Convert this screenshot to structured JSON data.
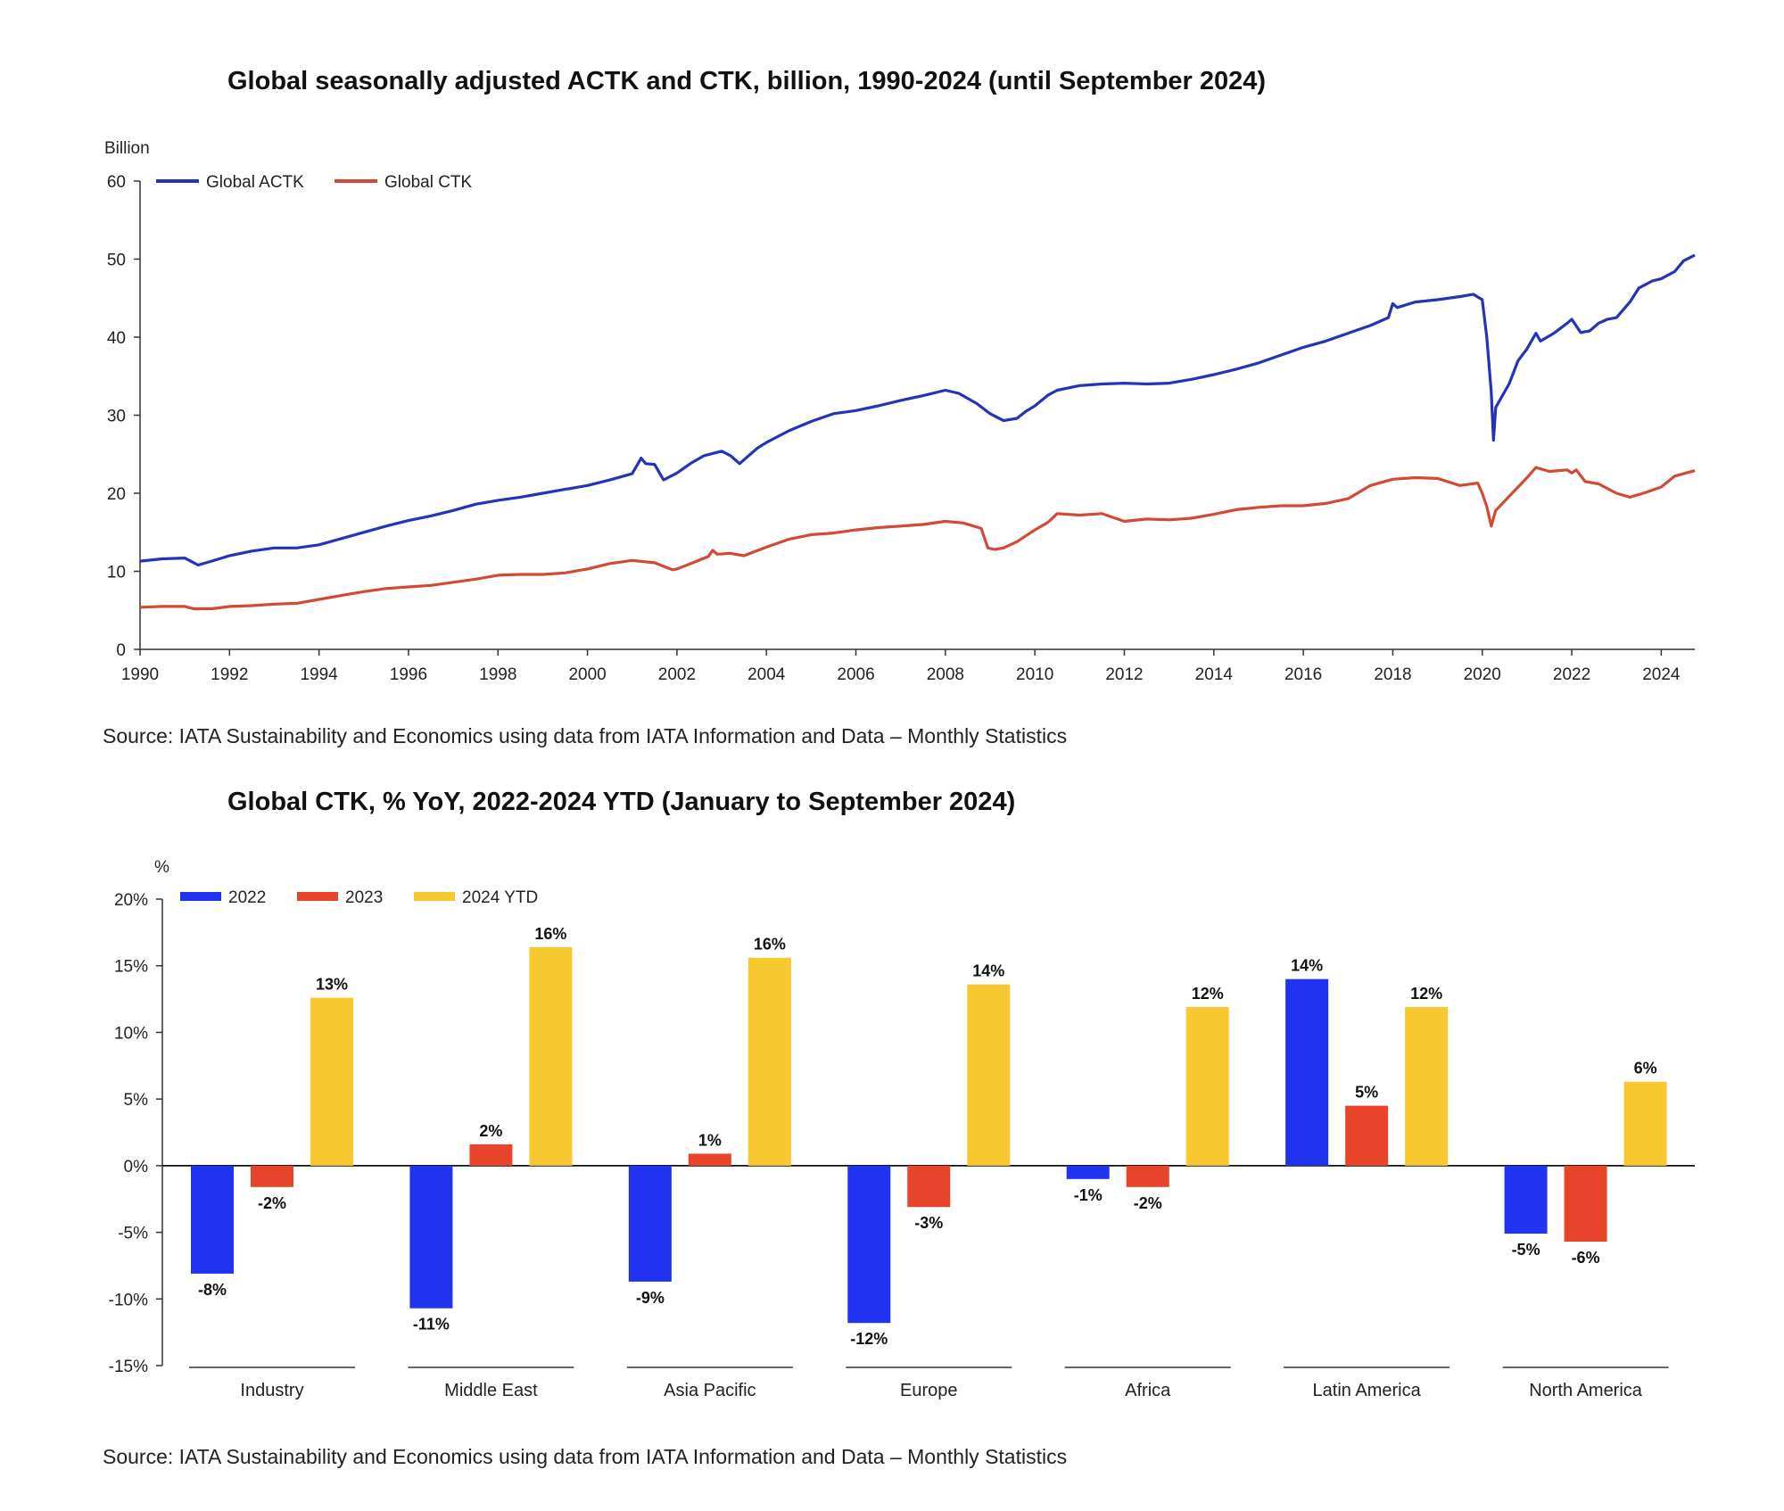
{
  "chart_data": [
    {
      "type": "line",
      "title": "Global seasonally adjusted ACTK and CTK, billion, 1990-2024 (until September 2024)",
      "ylabel": "Billion",
      "xlabel": "",
      "ylim": [
        0,
        60
      ],
      "xlim": [
        1990,
        2024.75
      ],
      "y_ticks": [
        0,
        10,
        20,
        30,
        40,
        50,
        60
      ],
      "x_ticks": [
        1990,
        1992,
        1994,
        1996,
        1998,
        2000,
        2002,
        2004,
        2006,
        2008,
        2010,
        2012,
        2014,
        2016,
        2018,
        2020,
        2022,
        2024
      ],
      "legend_position": "top-left",
      "grid": false,
      "series": [
        {
          "name": "Global ACTK",
          "color": "#2433b8",
          "x": [
            1990,
            1990.5,
            1991.0,
            1991.1,
            1991.3,
            1991.6,
            1992,
            1992.5,
            1993,
            1993.5,
            1994,
            1994.5,
            1995,
            1995.5,
            1996,
            1996.5,
            1997,
            1997.5,
            1998,
            1998.5,
            1999,
            1999.5,
            2000,
            2000.5,
            2001,
            2001.2,
            2001.3,
            2001.5,
            2001.7,
            2001.8,
            2002,
            2002.3,
            2002.6,
            2003.0,
            2003.2,
            2003.4,
            2003.8,
            2004,
            2004.5,
            2005,
            2005.5,
            2006,
            2006.5,
            2007,
            2007.5,
            2008,
            2008.3,
            2008.7,
            2009.0,
            2009.3,
            2009.6,
            2009.8,
            2010.0,
            2010.3,
            2010.5,
            2011,
            2011.5,
            2012,
            2012.5,
            2013,
            2013.5,
            2014,
            2014.5,
            2015,
            2015.5,
            2016,
            2016.5,
            2017,
            2017.5,
            2017.9,
            2018.0,
            2018.1,
            2018.5,
            2019,
            2019.5,
            2019.8,
            2020.0,
            2020.1,
            2020.2,
            2020.25,
            2020.3,
            2020.4,
            2020.6,
            2020.8,
            2021.0,
            2021.2,
            2021.3,
            2021.6,
            2021.9,
            2022.0,
            2022.2,
            2022.4,
            2022.6,
            2022.8,
            2023.0,
            2023.3,
            2023.5,
            2023.8,
            2024.0,
            2024.3,
            2024.5,
            2024.75
          ],
          "values": [
            11.3,
            11.6,
            11.7,
            11.4,
            10.8,
            11.3,
            12.0,
            12.6,
            13.0,
            13.0,
            13.4,
            14.2,
            15.0,
            15.8,
            16.5,
            17.1,
            17.8,
            18.6,
            19.1,
            19.5,
            20.0,
            20.5,
            21.0,
            21.7,
            22.5,
            24.5,
            23.8,
            23.7,
            21.7,
            22.0,
            22.6,
            23.8,
            24.8,
            25.4,
            24.8,
            23.8,
            25.8,
            26.5,
            28.0,
            29.2,
            30.2,
            30.6,
            31.2,
            31.9,
            32.5,
            33.2,
            32.8,
            31.5,
            30.2,
            29.3,
            29.6,
            30.5,
            31.2,
            32.6,
            33.2,
            33.8,
            34.0,
            34.1,
            34.0,
            34.1,
            34.6,
            35.2,
            35.9,
            36.7,
            37.7,
            38.7,
            39.5,
            40.5,
            41.5,
            42.5,
            44.3,
            43.8,
            44.5,
            44.8,
            45.2,
            45.5,
            44.8,
            40.0,
            33.0,
            26.8,
            31.0,
            32.0,
            34.0,
            37.0,
            38.5,
            40.5,
            39.5,
            40.5,
            41.8,
            42.3,
            40.6,
            40.8,
            41.8,
            42.3,
            42.5,
            44.5,
            46.3,
            47.2,
            47.5,
            48.4,
            49.8,
            50.5
          ]
        },
        {
          "name": "Global CTK",
          "color": "#d24a35",
          "x": [
            1990,
            1990.5,
            1991.0,
            1991.2,
            1991.6,
            1992,
            1992.5,
            1993,
            1993.5,
            1994,
            1994.5,
            1995,
            1995.5,
            1996,
            1996.5,
            1997,
            1997.5,
            1998,
            1998.5,
            1999,
            1999.5,
            2000,
            2000.5,
            2001,
            2001.5,
            2001.9,
            2002,
            2002.4,
            2002.7,
            2002.8,
            2002.9,
            2003.2,
            2003.5,
            2004,
            2004.5,
            2005,
            2005.5,
            2006,
            2006.5,
            2007,
            2007.5,
            2008,
            2008.4,
            2008.8,
            2008.95,
            2009.1,
            2009.3,
            2009.6,
            2010.0,
            2010.3,
            2010.5,
            2011,
            2011.5,
            2012,
            2012.5,
            2013,
            2013.5,
            2014,
            2014.5,
            2015,
            2015.5,
            2016,
            2016.5,
            2017,
            2017.5,
            2018,
            2018.5,
            2019,
            2019.5,
            2019.9,
            2020.0,
            2020.1,
            2020.2,
            2020.3,
            2020.5,
            2020.8,
            2021.0,
            2021.2,
            2021.5,
            2021.9,
            2022.0,
            2022.1,
            2022.3,
            2022.6,
            2023.0,
            2023.3,
            2023.6,
            2024.0,
            2024.3,
            2024.5,
            2024.75
          ],
          "values": [
            5.4,
            5.5,
            5.5,
            5.2,
            5.2,
            5.5,
            5.6,
            5.8,
            5.9,
            6.4,
            6.9,
            7.4,
            7.8,
            8.0,
            8.2,
            8.6,
            9.0,
            9.5,
            9.6,
            9.6,
            9.8,
            10.3,
            11.0,
            11.4,
            11.1,
            10.2,
            10.3,
            11.2,
            11.9,
            12.7,
            12.2,
            12.3,
            12.0,
            13.1,
            14.1,
            14.7,
            14.9,
            15.3,
            15.6,
            15.8,
            16.0,
            16.4,
            16.2,
            15.5,
            13.0,
            12.8,
            13.0,
            13.8,
            15.3,
            16.3,
            17.4,
            17.2,
            17.4,
            16.4,
            16.7,
            16.6,
            16.8,
            17.3,
            17.9,
            18.2,
            18.4,
            18.4,
            18.7,
            19.3,
            21.0,
            21.8,
            22.0,
            21.9,
            21.0,
            21.3,
            20.0,
            18.3,
            15.8,
            17.8,
            19.0,
            20.8,
            22.0,
            23.3,
            22.8,
            23.0,
            22.6,
            23.0,
            21.5,
            21.2,
            20.0,
            19.5,
            20.0,
            20.8,
            22.2,
            22.5,
            22.9
          ]
        }
      ]
    },
    {
      "type": "bar",
      "title": "Global CTK, % YoY, 2022-2024 YTD (January to September 2024)",
      "ylabel": "%",
      "xlabel": "",
      "ylim": [
        -15,
        20
      ],
      "y_ticks": [
        "20%",
        "15%",
        "10%",
        "5%",
        "0%",
        "-5%",
        "-10%",
        "-15%"
      ],
      "y_tick_values": [
        20,
        15,
        10,
        5,
        0,
        -5,
        -10,
        -15
      ],
      "legend_position": "top-left",
      "grid": false,
      "categories": [
        "Industry",
        "Middle East",
        "Asia Pacific",
        "Europe",
        "Africa",
        "Latin America",
        "North America"
      ],
      "series": [
        {
          "name": "2022",
          "color": "#2133f0",
          "values": [
            -8.1,
            -10.7,
            -8.7,
            -11.8,
            -1.0,
            14.0,
            -5.1
          ],
          "labels": [
            "-8%",
            "-11%",
            "-9%",
            "-12%",
            "-1%",
            "14%",
            "-5%"
          ]
        },
        {
          "name": "2023",
          "color": "#e8432b",
          "values": [
            -1.6,
            1.6,
            0.9,
            -3.1,
            -1.6,
            4.5,
            -5.7
          ],
          "labels": [
            "-2%",
            "2%",
            "1%",
            "-3%",
            "-2%",
            "5%",
            "-6%"
          ]
        },
        {
          "name": "2024 YTD",
          "color": "#f8c830",
          "values": [
            12.6,
            16.4,
            15.6,
            13.6,
            11.9,
            11.9,
            6.3
          ],
          "labels": [
            "13%",
            "16%",
            "16%",
            "14%",
            "12%",
            "12%",
            "6%"
          ]
        }
      ]
    }
  ],
  "sources": {
    "top": "Source: IATA Sustainability and Economics using data from IATA Information and Data – Monthly Statistics",
    "bottom": "Source: IATA Sustainability and Economics using data from IATA Information and Data – Monthly Statistics"
  }
}
